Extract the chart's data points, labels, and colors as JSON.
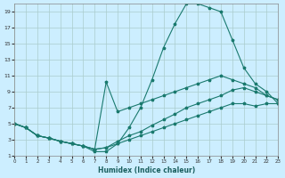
{
  "xlabel": "Humidex (Indice chaleur)",
  "bg_color": "#cceeff",
  "grid_color": "#aacccc",
  "line_color": "#1a7a6e",
  "xlim": [
    0,
    23
  ],
  "ylim": [
    1,
    20
  ],
  "xticks": [
    0,
    1,
    2,
    3,
    4,
    5,
    6,
    7,
    8,
    9,
    10,
    11,
    12,
    13,
    14,
    15,
    16,
    17,
    18,
    19,
    20,
    21,
    22,
    23
  ],
  "yticks": [
    1,
    3,
    5,
    7,
    9,
    11,
    13,
    15,
    17,
    19
  ],
  "line_spike_x": [
    0,
    1,
    2,
    3,
    4,
    5,
    6,
    7,
    8,
    9,
    10,
    11,
    12,
    13,
    14,
    15,
    16,
    17,
    18,
    19,
    20,
    21,
    22,
    23
  ],
  "line_spike_y": [
    5,
    4.5,
    3.5,
    3.2,
    2.8,
    2.5,
    2.2,
    1.8,
    10.2,
    6.5,
    7.0,
    7.5,
    8.0,
    8.5,
    9.0,
    9.5,
    10.0,
    10.5,
    11.0,
    10.5,
    10.0,
    9.5,
    8.5,
    8.0
  ],
  "line_peak_x": [
    0,
    1,
    2,
    3,
    4,
    5,
    6,
    7,
    8,
    9,
    10,
    11,
    12,
    13,
    14,
    15,
    16,
    17,
    18,
    19,
    20,
    21,
    22,
    23
  ],
  "line_peak_y": [
    5,
    4.5,
    3.5,
    3.2,
    2.8,
    2.5,
    2.2,
    1.5,
    1.5,
    2.5,
    4.5,
    7.0,
    10.5,
    14.5,
    17.5,
    20.0,
    20.0,
    19.5,
    19.0,
    15.5,
    12.0,
    10.0,
    9.0,
    7.5
  ],
  "line_mid_x": [
    0,
    1,
    2,
    3,
    4,
    5,
    6,
    7,
    8,
    9,
    10,
    11,
    12,
    13,
    14,
    15,
    16,
    17,
    18,
    19,
    20,
    21,
    22,
    23
  ],
  "line_mid_y": [
    5,
    4.5,
    3.5,
    3.2,
    2.8,
    2.5,
    2.2,
    1.8,
    2.0,
    2.8,
    3.5,
    4.0,
    4.8,
    5.5,
    6.2,
    7.0,
    7.5,
    8.0,
    8.5,
    9.2,
    9.5,
    9.0,
    8.5,
    8.0
  ],
  "line_low_x": [
    0,
    1,
    2,
    3,
    4,
    5,
    6,
    7,
    8,
    9,
    10,
    11,
    12,
    13,
    14,
    15,
    16,
    17,
    18,
    19,
    20,
    21,
    22,
    23
  ],
  "line_low_y": [
    5,
    4.5,
    3.5,
    3.2,
    2.8,
    2.5,
    2.2,
    1.8,
    2.0,
    2.5,
    3.0,
    3.5,
    4.0,
    4.5,
    5.0,
    5.5,
    6.0,
    6.5,
    7.0,
    7.5,
    7.5,
    7.2,
    7.5,
    7.5
  ]
}
